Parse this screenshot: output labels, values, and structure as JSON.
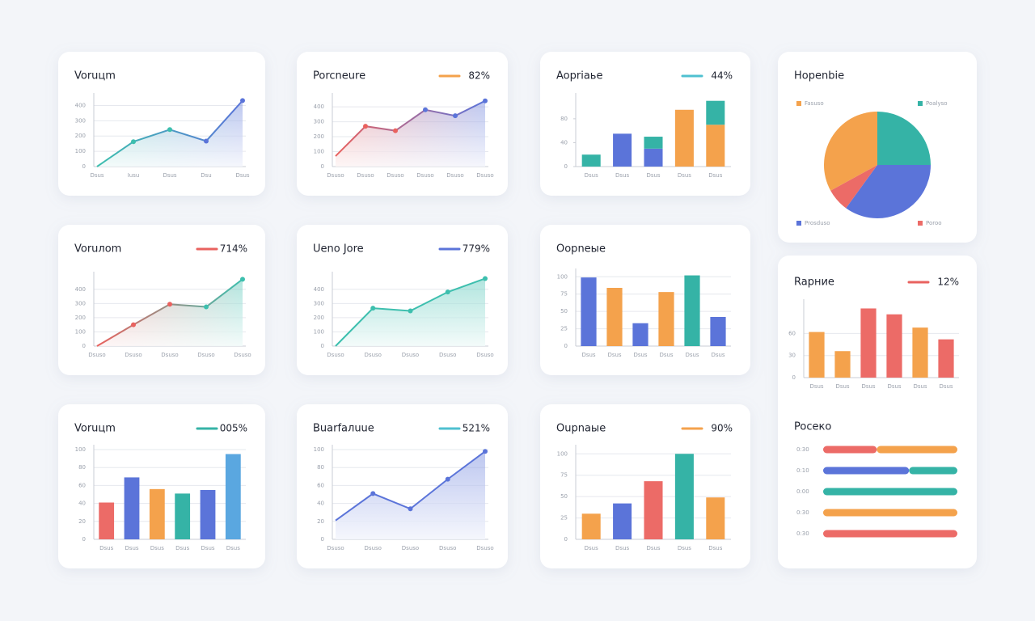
{
  "chart_data": [
    {
      "type": "line",
      "title": "Voruцm",
      "categories": [
        "Dsus",
        "Iusu",
        "Dsus",
        "Dsu",
        "Dsus"
      ],
      "values": [
        0,
        163,
        242,
        167,
        432
      ],
      "colors": [
        "#3dbfae",
        "#5b74d9"
      ],
      "ylim": [
        0,
        450
      ],
      "yticks": [
        0,
        100,
        200,
        300,
        400
      ],
      "grid": true
    },
    {
      "type": "line",
      "title": "Porcneure",
      "badge": "82%",
      "badge_color": "#f4a24c",
      "categories": [
        "Dsuso",
        "Dsuso",
        "Dsuso",
        "Dsuso",
        "Dsuso",
        "Dsuso"
      ],
      "values": [
        70,
        270,
        240,
        380,
        340,
        440
      ],
      "colors": [
        "#e9625f",
        "#5b74d9"
      ],
      "ylim": [
        0,
        460
      ],
      "yticks": [
        0,
        100,
        200,
        300,
        400
      ],
      "grid": true
    },
    {
      "type": "stacked-bar",
      "title": "Aopriaьe",
      "badge": "44%",
      "badge_color": "#4fc0d0",
      "categories": [
        "Dsus",
        "Dsus",
        "Dsus",
        "Dsus",
        "Dsus"
      ],
      "series": [
        {
          "name": "Blue",
          "color": "#5b74d9",
          "values": [
            0,
            55,
            30,
            0,
            0
          ]
        },
        {
          "name": "Orange",
          "color": "#f4a24c",
          "values": [
            0,
            0,
            0,
            95,
            70
          ]
        },
        {
          "name": "Teal",
          "color": "#35b3a6",
          "values": [
            20,
            0,
            20,
            0,
            40
          ]
        }
      ],
      "ylim": [
        0,
        115
      ],
      "yticks": [
        0,
        40,
        80
      ],
      "grid": false
    },
    {
      "type": "pie",
      "title": "Hopenbie",
      "categories": [
        "Poalyso",
        "Prosduso",
        "Poroo",
        "Fasuso"
      ],
      "values": [
        25,
        35,
        7,
        33
      ],
      "colors": [
        "#35b3a6",
        "#5b74d9",
        "#ec6b67",
        "#f4a24c"
      ]
    },
    {
      "type": "line",
      "title": "Voruлom",
      "badge": "714%",
      "badge_color": "#e9625f",
      "categories": [
        "Dsuso",
        "Dsuso",
        "Dsuso",
        "Dsuso",
        "Dsuso"
      ],
      "values": [
        0,
        150,
        295,
        276,
        471
      ],
      "colors": [
        "#e9625f",
        "#3dbfae"
      ],
      "ylim": [
        0,
        490
      ],
      "yticks": [
        0,
        100,
        200,
        300,
        400
      ],
      "grid": true
    },
    {
      "type": "line",
      "title": "Ueno Jore",
      "badge": "779%",
      "badge_color": "#5b74d9",
      "categories": [
        "Dsuso",
        "Dsuso",
        "Dsuso",
        "Dsuso",
        "Dsuso"
      ],
      "values": [
        0,
        267,
        248,
        381,
        476
      ],
      "colors": [
        "#3dbfae",
        "#3dbfae"
      ],
      "ylim": [
        0,
        490
      ],
      "yticks": [
        0,
        100,
        200,
        300,
        400
      ],
      "grid": true
    },
    {
      "type": "bar",
      "title": "Oopneыe",
      "categories": [
        "Dsus",
        "Dsus",
        "Dsus",
        "Dsus",
        "Dsus",
        "Dsus"
      ],
      "values": [
        99,
        84,
        33,
        78,
        102,
        42
      ],
      "colors": [
        "#5b74d9",
        "#f4a24c",
        "#5b74d9",
        "#f4a24c",
        "#35b3a6",
        "#5b74d9"
      ],
      "ylim": [
        0,
        105
      ],
      "yticks": [
        0,
        25,
        50,
        75,
        100
      ],
      "grid": true
    },
    {
      "type": "bar",
      "title": "Rapние",
      "badge": "12%",
      "badge_color": "#e9625f",
      "categories": [
        "Dsus",
        "Dsus",
        "Dsus",
        "Dsus",
        "Dsus",
        "Dsus"
      ],
      "values": [
        62,
        36,
        94,
        86,
        68,
        52
      ],
      "colors": [
        "#f4a24c",
        "#f4a24c",
        "#ec6b67",
        "#ec6b67",
        "#f4a24c",
        "#ec6b67"
      ],
      "ylim": [
        0,
        100
      ],
      "yticks": [
        0,
        30,
        60
      ],
      "grid": true
    },
    {
      "type": "progress",
      "title": "Pocеко",
      "categories": [
        "0:30",
        "0:10",
        "0:00",
        "0:30",
        "0:30"
      ],
      "series": [
        {
          "name": "Red",
          "color": "#ec6b67",
          "values": [
            40,
            0,
            0,
            0,
            100
          ]
        },
        {
          "name": "Orange",
          "color": "#f4a24c",
          "values": [
            60,
            0,
            0,
            100,
            0
          ]
        },
        {
          "name": "Blue",
          "color": "#5b74d9",
          "values": [
            0,
            64,
            0,
            0,
            0
          ]
        },
        {
          "name": "Teal",
          "color": "#35b3a6",
          "values": [
            0,
            36,
            100,
            0,
            0
          ]
        }
      ],
      "xlim": [
        0,
        100
      ]
    },
    {
      "type": "bar",
      "title": "Voruцm",
      "badge": "005%",
      "badge_color": "#35b3a6",
      "categories": [
        "Dsus",
        "Dsus",
        "Dsus",
        "Dsus",
        "Dsus",
        "Dsus"
      ],
      "values": [
        41,
        69,
        56,
        51,
        55,
        95
      ],
      "colors": [
        "#ec6b67",
        "#5b74d9",
        "#f4a24c",
        "#35b3a6",
        "#5b74d9",
        "#5aa7e0"
      ],
      "ylim": [
        0,
        100
      ],
      "yticks": [
        0,
        20,
        40,
        60,
        80,
        100
      ],
      "grid": true
    },
    {
      "type": "line",
      "title": "Buarfaлuue",
      "badge": "521%",
      "badge_color": "#4fc0d0",
      "categories": [
        "Dsuso",
        "Dsuso",
        "Dsuso",
        "Dsuso",
        "Dsuso"
      ],
      "values": [
        21,
        51,
        34,
        67,
        98
      ],
      "colors": [
        "#5b74d9",
        "#5b74d9"
      ],
      "ylim": [
        0,
        100
      ],
      "yticks": [
        0,
        20,
        40,
        60,
        80,
        100
      ],
      "grid": true
    },
    {
      "type": "bar",
      "title": "Oupnaыe",
      "badge": "90%",
      "badge_color": "#f4a24c",
      "categories": [
        "Dsus",
        "Dsus",
        "Dsus",
        "Dsus",
        "Dsus"
      ],
      "values": [
        30,
        42,
        68,
        100,
        49
      ],
      "colors": [
        "#f4a24c",
        "#5b74d9",
        "#ec6b67",
        "#35b3a6",
        "#f4a24c"
      ],
      "ylim": [
        0,
        105
      ],
      "yticks": [
        0,
        25,
        50,
        75,
        100
      ],
      "grid": true
    }
  ]
}
